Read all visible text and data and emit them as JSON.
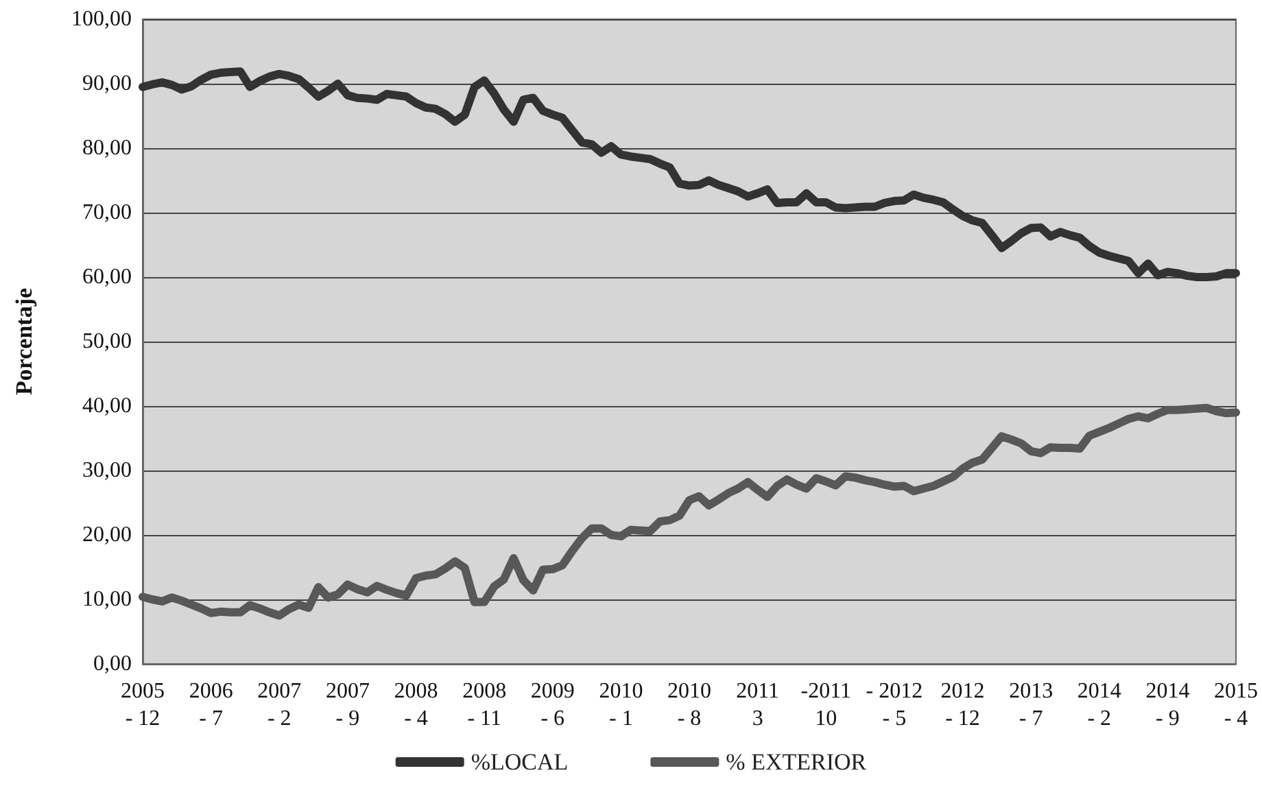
{
  "chart_data": {
    "type": "line",
    "ylabel": "Porcentaje",
    "categories": [
      "2005\n- 12",
      null,
      null,
      null,
      null,
      null,
      null,
      "2006\n- 7",
      null,
      null,
      null,
      null,
      null,
      null,
      "2007\n- 2",
      null,
      null,
      null,
      null,
      null,
      null,
      "2007\n- 9",
      null,
      null,
      null,
      null,
      null,
      null,
      "2008\n- 4",
      null,
      null,
      null,
      null,
      null,
      null,
      "2008\n- 11",
      null,
      null,
      null,
      null,
      null,
      null,
      "2009\n- 6",
      null,
      null,
      null,
      null,
      null,
      null,
      "2010\n- 1",
      null,
      null,
      null,
      null,
      null,
      null,
      "2010\n- 8",
      null,
      null,
      null,
      null,
      null,
      null,
      "2011\n3",
      null,
      null,
      null,
      null,
      null,
      null,
      "-2011\n10",
      null,
      null,
      null,
      null,
      null,
      null,
      "- 2012\n- 5",
      null,
      null,
      null,
      null,
      null,
      null,
      "2012\n- 12",
      null,
      null,
      null,
      null,
      null,
      null,
      "2013\n- 7",
      null,
      null,
      null,
      null,
      null,
      null,
      "2014\n- 2",
      null,
      null,
      null,
      null,
      null,
      null,
      "2014\n- 9",
      null,
      null,
      null,
      null,
      null,
      null,
      "2015\n- 4"
    ],
    "series": [
      {
        "name": "%LOCAL",
        "color": "#333333",
        "values": [
          89.5,
          89.9,
          90.2,
          89.8,
          89.1,
          89.6,
          90.6,
          91.4,
          91.7,
          91.8,
          91.9,
          89.5,
          90.4,
          91.1,
          91.5,
          91.2,
          90.7,
          89.4,
          88,
          88.9,
          90,
          88.2,
          87.8,
          87.7,
          87.5,
          88.4,
          88.2,
          88,
          87,
          86.3,
          86.1,
          85.3,
          84.1,
          85.2,
          89.5,
          90.5,
          88.5,
          86,
          84.1,
          87.5,
          87.8,
          85.8,
          85.2,
          84.7,
          82.8,
          80.9,
          80.6,
          79.3,
          80.3,
          79,
          78.7,
          78.5,
          78.3,
          77.6,
          77,
          74.5,
          74.2,
          74.3,
          75,
          74.3,
          73.8,
          73.3,
          72.5,
          73,
          73.6,
          71.5,
          71.6,
          71.6,
          73,
          71.6,
          71.6,
          70.8,
          70.7,
          70.8,
          70.9,
          70.9,
          71.5,
          71.8,
          71.9,
          72.8,
          72.3,
          72,
          71.6,
          70.5,
          69.5,
          68.8,
          68.4,
          66.5,
          64.5,
          65.6,
          66.8,
          67.6,
          67.7,
          66.3,
          67,
          66.5,
          66.1,
          64.8,
          63.8,
          63.3,
          62.9,
          62.5,
          60.6,
          62.1,
          60.3,
          60.8,
          60.6,
          60.2,
          60,
          60,
          60.1,
          60.6,
          60.6
        ]
      },
      {
        "name": "% EXTERIOR",
        "color": "#585858",
        "values": [
          10.4,
          10,
          9.7,
          10.3,
          9.8,
          9.2,
          8.6,
          7.9,
          8.1,
          8,
          8,
          9.1,
          8.6,
          8,
          7.5,
          8.5,
          9.2,
          8.7,
          11.9,
          10.3,
          10.8,
          12.3,
          11.6,
          11.1,
          12.1,
          11.5,
          11,
          10.6,
          13.3,
          13.7,
          13.9,
          14.8,
          15.9,
          14.9,
          9.6,
          9.6,
          12,
          13.1,
          16.4,
          13,
          11.4,
          14.6,
          14.7,
          15.3,
          17.5,
          19.5,
          21,
          21,
          20,
          19.8,
          20.8,
          20.7,
          20.6,
          22.1,
          22.3,
          23,
          25.4,
          26,
          24.6,
          25.5,
          26.5,
          27.2,
          28.2,
          27,
          25.9,
          27.6,
          28.6,
          27.8,
          27.2,
          28.8,
          28.3,
          27.7,
          29.1,
          28.9,
          28.5,
          28.2,
          27.8,
          27.5,
          27.6,
          26.8,
          27.2,
          27.6,
          28.3,
          29,
          30.3,
          31.2,
          31.7,
          33.5,
          35.3,
          34.8,
          34.2,
          33,
          32.7,
          33.6,
          33.5,
          33.5,
          33.4,
          35.4,
          36,
          36.6,
          37.3,
          38,
          38.4,
          38.1,
          38.8,
          39.4,
          39.4,
          39.5,
          39.6,
          39.7,
          39.2,
          38.9,
          39
        ]
      }
    ],
    "ylim": [
      0,
      100
    ],
    "yticks": [
      {
        "value": 0,
        "label": "0,00"
      },
      {
        "value": 10,
        "label": "10,00"
      },
      {
        "value": 20,
        "label": "20,00"
      },
      {
        "value": 30,
        "label": "30,00"
      },
      {
        "value": 40,
        "label": "40,00"
      },
      {
        "value": 50,
        "label": "50,00"
      },
      {
        "value": 60,
        "label": "60,00"
      },
      {
        "value": 70,
        "label": "70,00"
      },
      {
        "value": 80,
        "label": "80,00"
      },
      {
        "value": 90,
        "label": "90,00"
      },
      {
        "value": 100,
        "label": "100,00"
      }
    ],
    "grid": "y",
    "legend": "bottom",
    "marker": "none",
    "line_style": "solid"
  }
}
